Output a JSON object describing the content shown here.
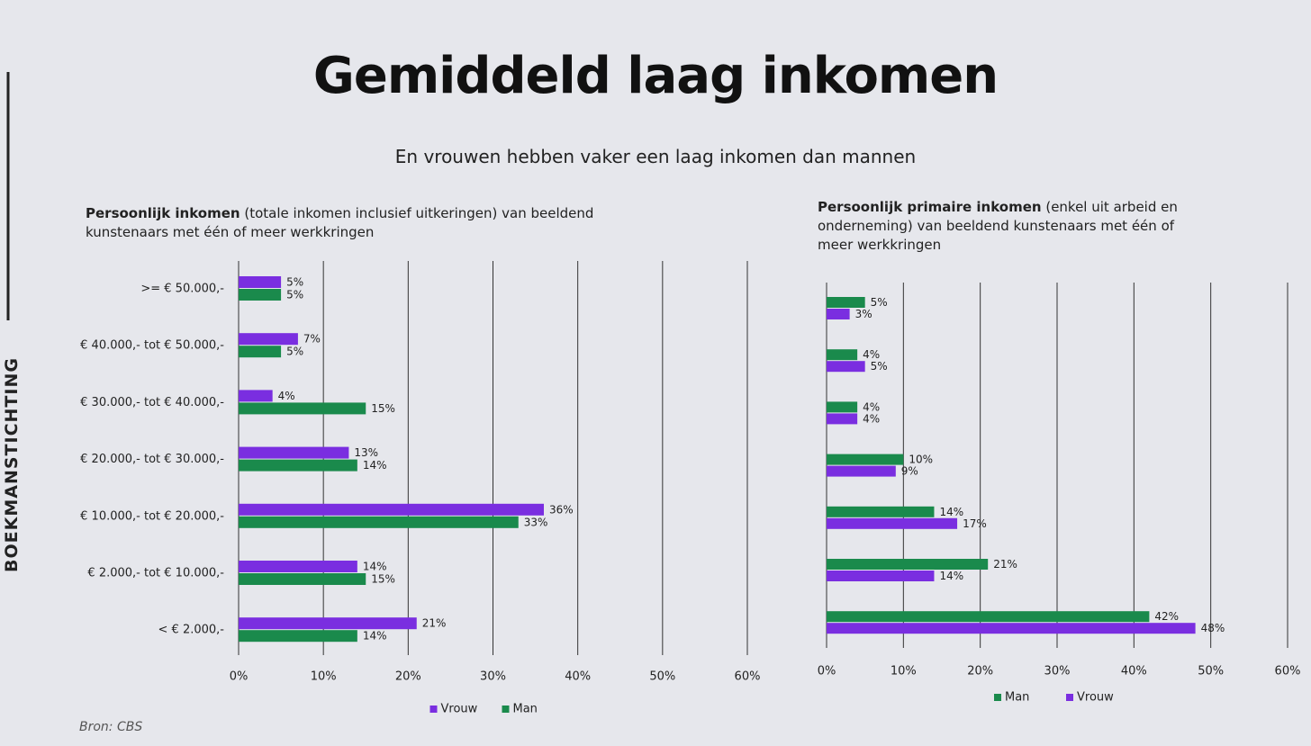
{
  "header": {
    "title": "Gemiddeld laag inkomen",
    "subtitle": "En vrouwen hebben vaker een laag inkomen dan mannen"
  },
  "sidebar": "BOEKMANSTICHTING",
  "source": "Bron: CBS",
  "chart_data": [
    {
      "type": "bar",
      "orientation": "horizontal",
      "title_bold": "Persoonlijk inkomen",
      "title_rest": "(totale inkomen inclusief uitkeringen) van beeldend kunstenaars met één of meer werkkringen",
      "categories": [
        ">= € 50.000,-",
        "€ 40.000,- tot € 50.000,-",
        "€ 30.000,- tot € 40.000,-",
        "€ 20.000,- tot € 30.000,-",
        "€ 10.000,- tot € 20.000,-",
        "€ 2.000,- tot € 10.000,-",
        "< € 2.000,-"
      ],
      "series": [
        {
          "name": "Vrouw",
          "color": "#7a2ee0",
          "values": [
            5,
            7,
            4,
            13,
            36,
            14,
            21
          ],
          "value_labels": [
            "5%",
            "7%",
            "4%",
            "13%",
            "36%",
            "14%",
            "21%"
          ]
        },
        {
          "name": "Man",
          "color": "#1a8a4c",
          "values": [
            5,
            5,
            15,
            14,
            33,
            15,
            14
          ],
          "value_labels": [
            "5%",
            "5%",
            "15%",
            "14%",
            "33%",
            "15%",
            "14%"
          ]
        }
      ],
      "xlim": [
        0,
        60
      ],
      "xticks": [
        {
          "value": 0,
          "label": "0%"
        },
        {
          "value": 10,
          "label": "10%"
        },
        {
          "value": 20,
          "label": "20%"
        },
        {
          "value": 30,
          "label": "30%"
        },
        {
          "value": 40,
          "label": "40%"
        },
        {
          "value": 50,
          "label": "50%"
        },
        {
          "value": 60,
          "label": "60%"
        }
      ],
      "grid": true,
      "legend": "bottom"
    },
    {
      "type": "bar",
      "orientation": "horizontal",
      "title_bold": "Persoonlijk primaire inkomen",
      "title_rest": "(enkel uit arbeid en onderneming) van beeldend kunstenaars met één of meer werkkringen",
      "categories": [
        null,
        null,
        null,
        null,
        null,
        null,
        null
      ],
      "series": [
        {
          "name": "Man",
          "color": "#1a8a4c",
          "values": [
            5,
            4,
            4,
            10,
            14,
            21,
            42
          ],
          "value_labels": [
            "5%",
            "4%",
            "4%",
            "10%",
            "14%",
            "21%",
            "42%"
          ]
        },
        {
          "name": "Vrouw",
          "color": "#7a2ee0",
          "values": [
            3,
            5,
            4,
            9,
            17,
            14,
            48
          ],
          "value_labels": [
            "3%",
            "5%",
            "4%",
            "9%",
            "17%",
            "14%",
            "48%"
          ]
        }
      ],
      "xlim": [
        0,
        60
      ],
      "xticks": [
        {
          "value": 0,
          "label": "0%"
        },
        {
          "value": 10,
          "label": "10%"
        },
        {
          "value": 20,
          "label": "20%"
        },
        {
          "value": 30,
          "label": "30%"
        },
        {
          "value": 40,
          "label": "40%"
        },
        {
          "value": 50,
          "label": "50%"
        },
        {
          "value": 60,
          "label": "60%"
        }
      ],
      "grid": true,
      "legend": "bottom"
    }
  ]
}
